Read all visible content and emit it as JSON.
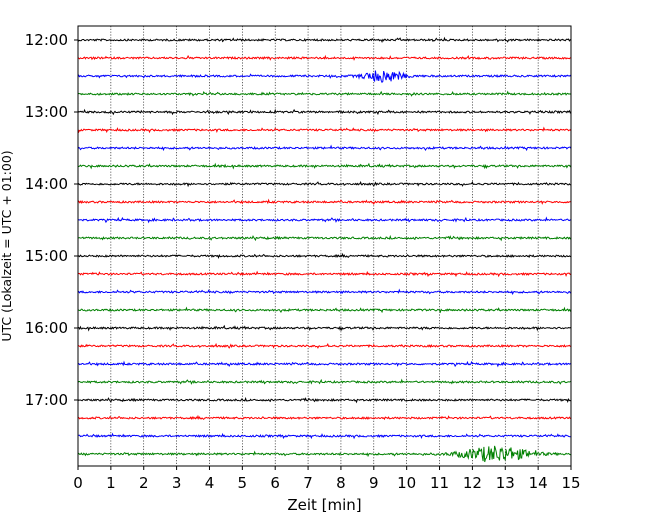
{
  "chart_data": {
    "type": "line",
    "title": "",
    "xlabel": "Zeit  [min]",
    "ylabel": "UTC (Lokalzeit = UTC + 01:00)",
    "xlim": [
      0,
      15
    ],
    "x_ticks": [
      0,
      1,
      2,
      3,
      4,
      5,
      6,
      7,
      8,
      9,
      10,
      11,
      12,
      13,
      14,
      15
    ],
    "x_tick_labels": [
      "0",
      "1",
      "2",
      "3",
      "4",
      "5",
      "6",
      "7",
      "8",
      "9",
      "10",
      "11",
      "12",
      "13",
      "14",
      "15"
    ],
    "y_tick_labels": [
      "12:00",
      "13:00",
      "14:00",
      "15:00",
      "16:00",
      "17:00"
    ],
    "grid_vertical": true,
    "trace_colors": [
      "#000000",
      "#ff0000",
      "#0000ff",
      "#008000"
    ],
    "traces": [
      {
        "start": "12:00",
        "color": "#000000"
      },
      {
        "start": "12:15",
        "color": "#ff0000"
      },
      {
        "start": "12:30",
        "color": "#0000ff",
        "events": [
          {
            "center_min": 9.3,
            "width_min": 1.5,
            "amplitude": 6
          }
        ]
      },
      {
        "start": "12:45",
        "color": "#008000"
      },
      {
        "start": "13:00",
        "color": "#000000"
      },
      {
        "start": "13:15",
        "color": "#ff0000"
      },
      {
        "start": "13:30",
        "color": "#0000ff"
      },
      {
        "start": "13:45",
        "color": "#008000"
      },
      {
        "start": "14:00",
        "color": "#000000"
      },
      {
        "start": "14:15",
        "color": "#ff0000"
      },
      {
        "start": "14:30",
        "color": "#0000ff"
      },
      {
        "start": "14:45",
        "color": "#008000"
      },
      {
        "start": "15:00",
        "color": "#000000"
      },
      {
        "start": "15:15",
        "color": "#ff0000"
      },
      {
        "start": "15:30",
        "color": "#0000ff"
      },
      {
        "start": "15:45",
        "color": "#008000"
      },
      {
        "start": "16:00",
        "color": "#000000"
      },
      {
        "start": "16:15",
        "color": "#ff0000"
      },
      {
        "start": "16:30",
        "color": "#0000ff"
      },
      {
        "start": "16:45",
        "color": "#008000"
      },
      {
        "start": "17:00",
        "color": "#000000"
      },
      {
        "start": "17:15",
        "color": "#ff0000"
      },
      {
        "start": "17:30",
        "color": "#0000ff"
      },
      {
        "start": "17:45",
        "color": "#008000",
        "events": [
          {
            "center_min": 12.7,
            "width_min": 2.6,
            "amplitude": 8
          }
        ]
      }
    ]
  }
}
